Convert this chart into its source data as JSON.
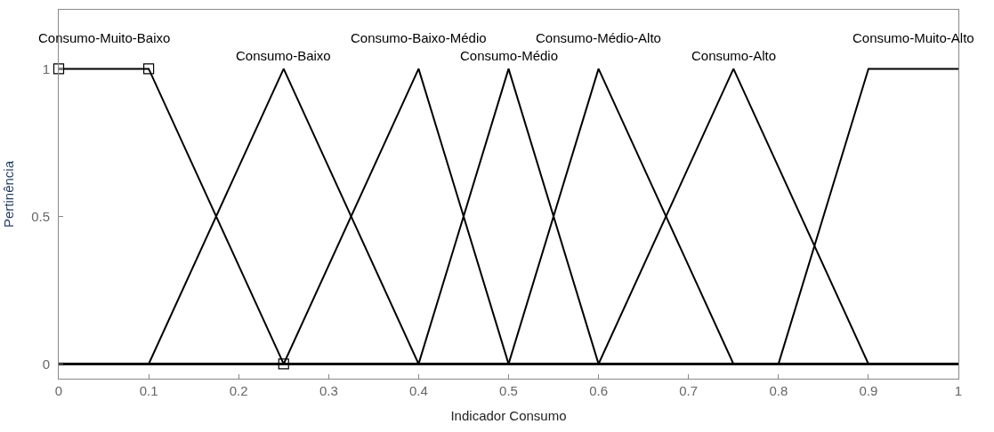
{
  "chart_data": {
    "type": "line",
    "xlabel": "Indicador Consumo",
    "ylabel": "Pertinência",
    "xlim": [
      0,
      1
    ],
    "ylim": [
      -0.05,
      1.2
    ],
    "xticks": [
      0,
      0.1,
      0.2,
      0.3,
      0.4,
      0.5,
      0.6,
      0.7,
      0.8,
      0.9,
      1
    ],
    "yticks": [
      0,
      0.5,
      1
    ],
    "legend": false,
    "marker": "none",
    "line_style": "solid",
    "series": [
      {
        "name": "Consumo-Muito-Baixo",
        "color": "#000000",
        "marker": "square",
        "x": [
          0,
          0.1,
          0.25
        ],
        "values": [
          1,
          1,
          0
        ]
      },
      {
        "name": "Consumo-Baixo",
        "color": "#000000",
        "x": [
          0,
          0.1,
          0.25,
          0.4,
          1
        ],
        "values": [
          0,
          0,
          1,
          0,
          0
        ]
      },
      {
        "name": "Consumo-Baixo-Médio",
        "color": "#000000",
        "x": [
          0,
          0.25,
          0.4,
          0.5,
          1
        ],
        "values": [
          0,
          0,
          1,
          0,
          0
        ]
      },
      {
        "name": "Consumo-Médio",
        "color": "#000000",
        "x": [
          0,
          0.4,
          0.5,
          0.6,
          1
        ],
        "values": [
          0,
          0,
          1,
          0,
          0
        ]
      },
      {
        "name": "Consumo-Médio-Alto",
        "color": "#000000",
        "x": [
          0,
          0.5,
          0.6,
          0.75,
          1
        ],
        "values": [
          0,
          0,
          1,
          0,
          0
        ]
      },
      {
        "name": "Consumo-Alto",
        "color": "#000000",
        "x": [
          0,
          0.6,
          0.75,
          0.9,
          1
        ],
        "values": [
          0,
          0,
          1,
          0,
          0
        ]
      },
      {
        "name": "Consumo-Muito-Alto",
        "color": "#000000",
        "x": [
          0,
          0.8,
          0.9,
          1
        ],
        "values": [
          0,
          0,
          1,
          1
        ]
      }
    ]
  }
}
